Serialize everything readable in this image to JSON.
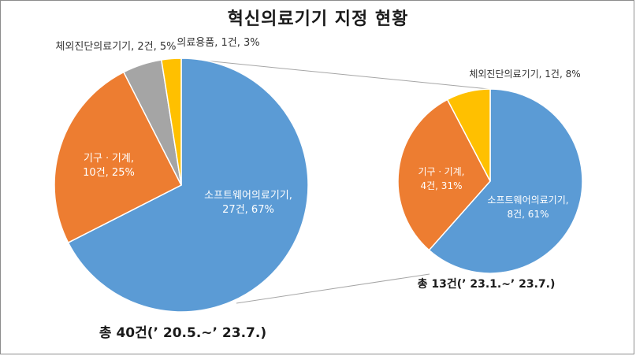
{
  "title": "혁신의료기기 지정 현황",
  "chart_data": [
    {
      "type": "pie",
      "caption": "총 40건(’ 20.5.~’ 23.7.)",
      "slices": [
        {
          "category": "소프트웨어의료기기",
          "line1": "소프트웨어의료기기,",
          "line2": "27건, 67%",
          "value": 27,
          "percent": 67,
          "color": "#5b9bd5",
          "label_inside": true
        },
        {
          "category": "기구ㆍ기계",
          "line1": "기구ㆍ기계,",
          "line2": "10건, 25%",
          "value": 10,
          "percent": 25,
          "color": "#ed7d31",
          "label_inside": true
        },
        {
          "category": "체외진단의료기기",
          "line1": "체외진단의료기기, 2건, 5%",
          "line2": "",
          "value": 2,
          "percent": 5,
          "color": "#a5a5a5",
          "label_inside": false
        },
        {
          "category": "의료용품",
          "line1": "의료용품, 1건, 3%",
          "line2": "",
          "value": 1,
          "percent": 3,
          "color": "#ffc000",
          "label_inside": false
        }
      ]
    },
    {
      "type": "pie",
      "caption": "총 13건(’ 23.1.~’ 23.7.)",
      "slices": [
        {
          "category": "소프트웨어의료기기",
          "line1": "소프트웨어의료기기,",
          "line2": "8건, 61%",
          "value": 8,
          "percent": 61,
          "color": "#5b9bd5",
          "label_inside": true
        },
        {
          "category": "기구ㆍ기계",
          "line1": "기구ㆍ기계,",
          "line2": "4건, 31%",
          "value": 4,
          "percent": 31,
          "color": "#ed7d31",
          "label_inside": true
        },
        {
          "category": "체외진단의료기기",
          "line1": "체외진단의료기기, 1건, 8%",
          "line2": "",
          "value": 1,
          "percent": 8,
          "color": "#ffc000",
          "label_inside": false
        }
      ]
    }
  ]
}
